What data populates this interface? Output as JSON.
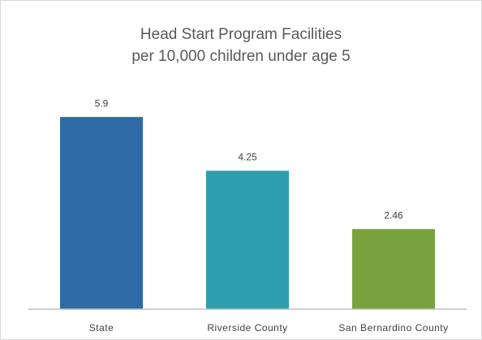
{
  "chart_data": {
    "type": "bar",
    "title": "Head Start Program Facilities",
    "subtitle": "per 10,000 children under age 5",
    "categories": [
      "State",
      "Riverside County",
      "San Bernardino County"
    ],
    "values": [
      5.9,
      4.25,
      2.46
    ],
    "colors": [
      "#2e6aa6",
      "#2e9fae",
      "#78a23e"
    ],
    "ylim": [
      0,
      7
    ]
  }
}
